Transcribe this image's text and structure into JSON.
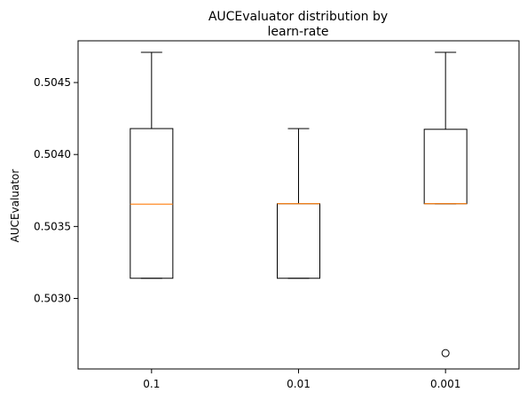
{
  "chart_data": {
    "type": "box",
    "title": [
      "AUCEvaluator distribution by",
      "learn-rate"
    ],
    "xlabel": "",
    "ylabel": "AUCEvaluator",
    "categories": [
      "0.1",
      "0.01",
      "0.001"
    ],
    "ylim": [
      0.50251,
      0.50479
    ],
    "yticks": [
      0.503,
      0.5035,
      0.504,
      0.5045
    ],
    "ytick_labels": [
      "0.5030",
      "0.5035",
      "0.5040",
      "0.5045"
    ],
    "grid": false,
    "boxes": [
      {
        "category": "0.1",
        "whisker_low": 0.50314,
        "q1": 0.50314,
        "median": 0.503655,
        "q3": 0.50418,
        "whisker_high": 0.50471,
        "outliers": []
      },
      {
        "category": "0.01",
        "whisker_low": 0.50314,
        "q1": 0.50314,
        "median": 0.503658,
        "q3": 0.503658,
        "whisker_high": 0.50418,
        "outliers": []
      },
      {
        "category": "0.001",
        "whisker_low": 0.503658,
        "q1": 0.503658,
        "median": 0.503658,
        "q3": 0.504175,
        "whisker_high": 0.50471,
        "outliers": [
          0.50262
        ]
      }
    ],
    "colors": {
      "box": "#000000",
      "median": "#ff7f0e",
      "outlier": "#000000"
    }
  }
}
